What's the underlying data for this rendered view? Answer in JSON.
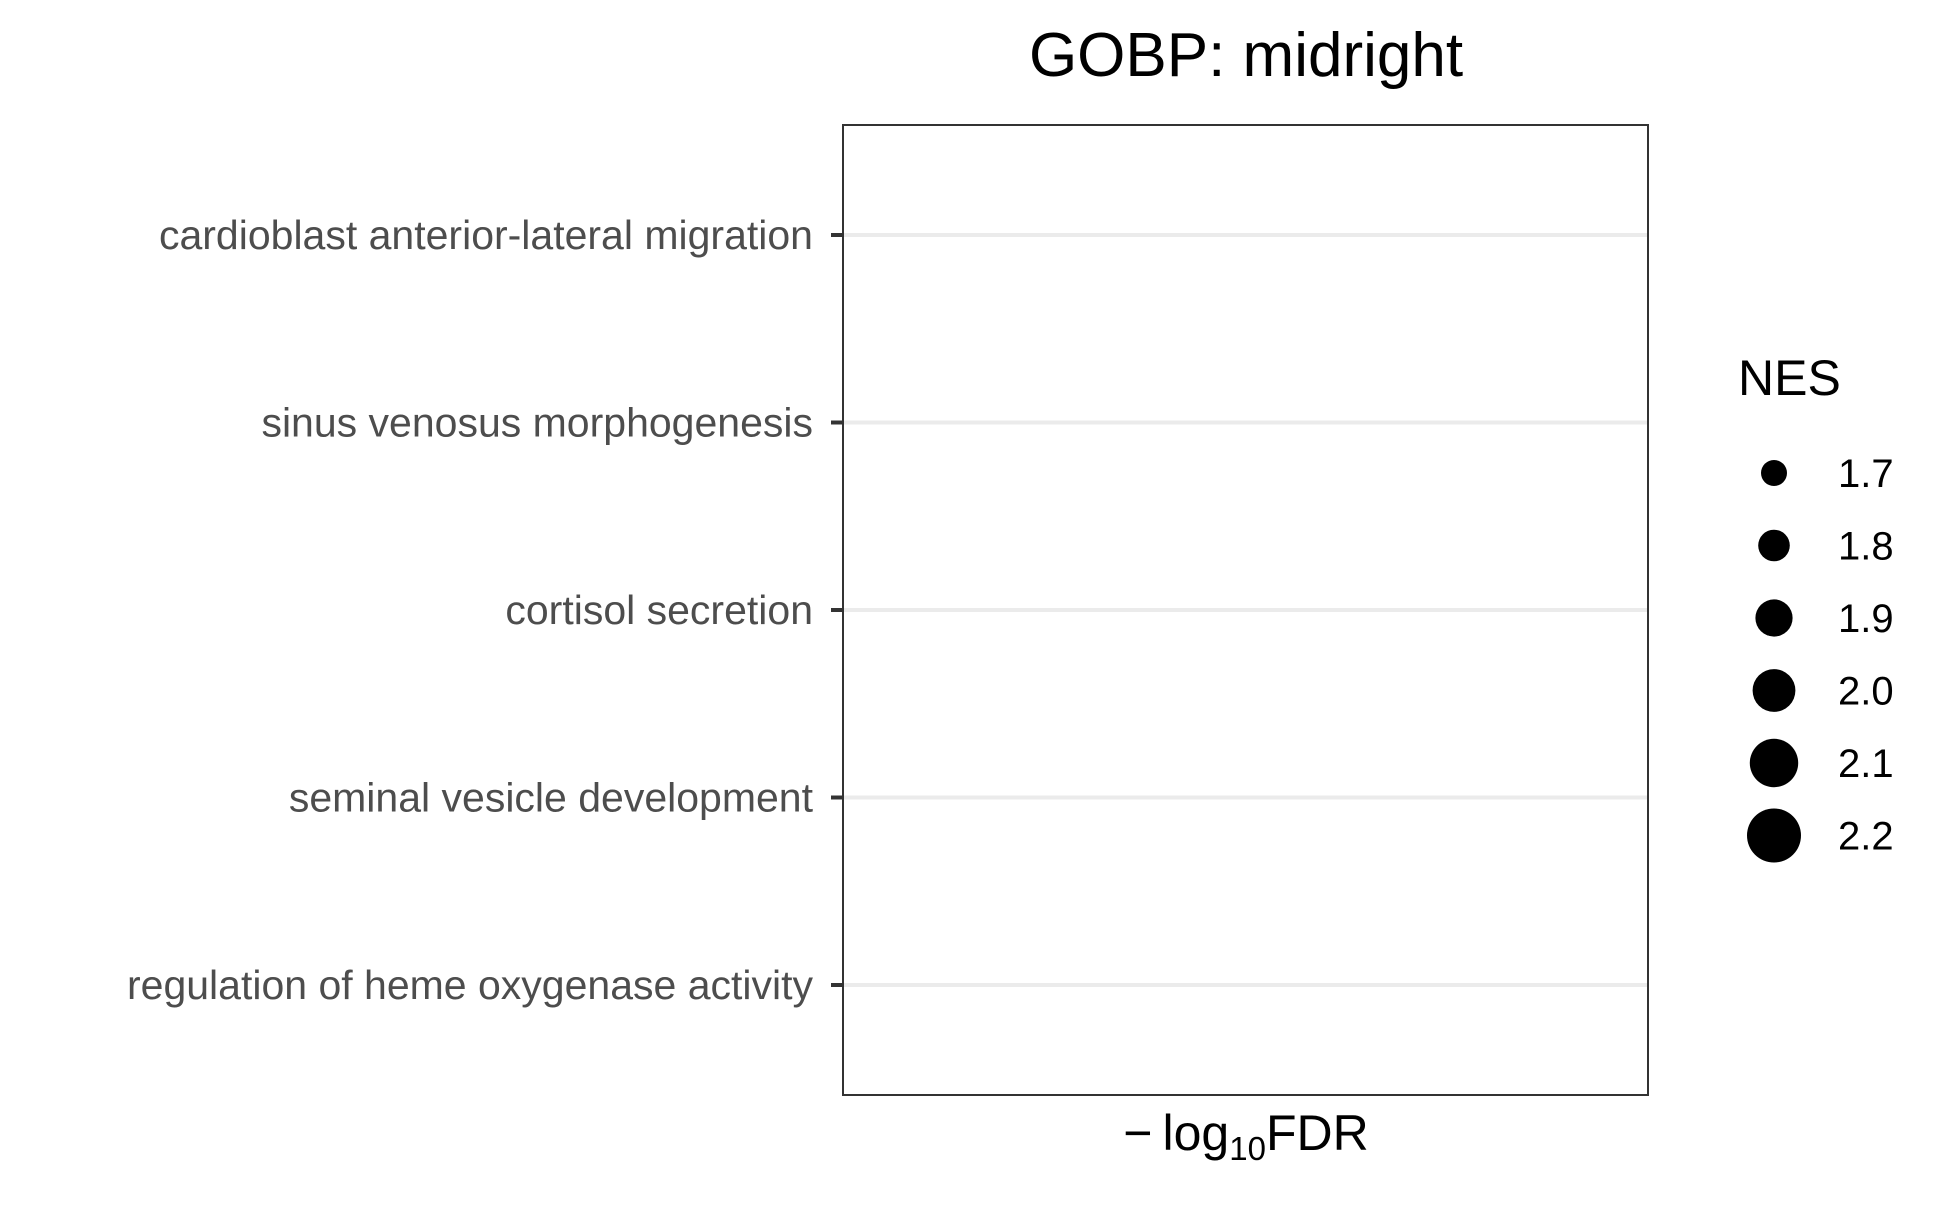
{
  "chart_data": {
    "type": "scatter",
    "title": "GOBP: midright",
    "xlabel": {
      "prefix": "− log",
      "subscript": "10",
      "suffix": "FDR"
    },
    "ylabel": "",
    "categories": [
      "cardioblast anterior-lateral migration",
      "sinus venosus morphogenesis",
      "cortisol secretion",
      "seminal vesicle development",
      "regulation of heme oxygenase activity"
    ],
    "points": [],
    "x_ticks": [],
    "grid": "horizontal",
    "legend": {
      "title": "NES",
      "position": "right",
      "entries": [
        {
          "label": "1.7",
          "value": 1.7
        },
        {
          "label": "1.8",
          "value": 1.8
        },
        {
          "label": "1.9",
          "value": 1.9
        },
        {
          "label": "2.0",
          "value": 2.0
        },
        {
          "label": "2.1",
          "value": 2.1
        },
        {
          "label": "2.2",
          "value": 2.2
        }
      ]
    },
    "colors": {
      "text": "#000000",
      "axis_text": "#4d4d4d",
      "grid": "#ebebeb",
      "panel_border": "#333333",
      "point": "#000000"
    }
  }
}
